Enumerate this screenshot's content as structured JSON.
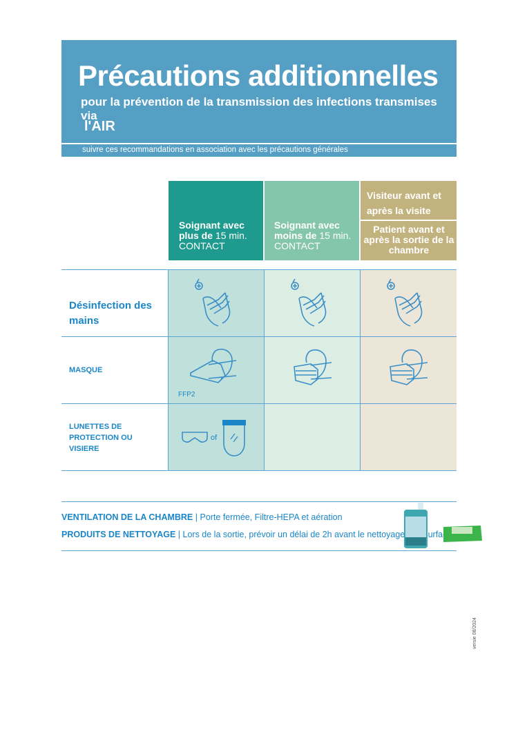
{
  "header": {
    "title": "Précautions additionnelles",
    "subtitle": "pour la prévention de la transmission des infections transmises via",
    "route": "l'AIR",
    "band": "suivre ces recommandations en association avec les précautions générales"
  },
  "columns": [
    {
      "bold": "Soignant avec plus de",
      "normal": "15 min.",
      "sub": "CONTACT",
      "color": "#1e9b8e"
    },
    {
      "bold": "Soignant avec moins de",
      "normal": "15 min.",
      "sub": "CONTACT",
      "color": "#84c6ab"
    },
    {
      "top": "Visiteur avant et après la visite",
      "bottom": "Patient avant et après la sortie de la chambre",
      "color": "#c2b37e"
    }
  ],
  "rows": [
    {
      "label": "Désinfection des mains",
      "icon": "hand-disinfection-icon"
    },
    {
      "label": "MASQUE",
      "icon": "mask-icon",
      "note": "FFP2"
    },
    {
      "label": "LUNETTES DE PROTECTION OU VISIERE",
      "icon": "goggles-icon",
      "or": "of"
    }
  ],
  "cell_colors": [
    "#c0e0db",
    "#dcede3",
    "#ebe6d7"
  ],
  "footer": [
    {
      "bold": "VENTILATION DE LA CHAMBRE",
      "text": "Porte fermée, Filtre-HEPA et aération"
    },
    {
      "bold": "PRODUITS DE NETTOYAGE",
      "text": "Lors de la sortie, prévoir un délai de 2h avant le nettoyage des surfaces"
    }
  ],
  "version": "versie 08/2024"
}
